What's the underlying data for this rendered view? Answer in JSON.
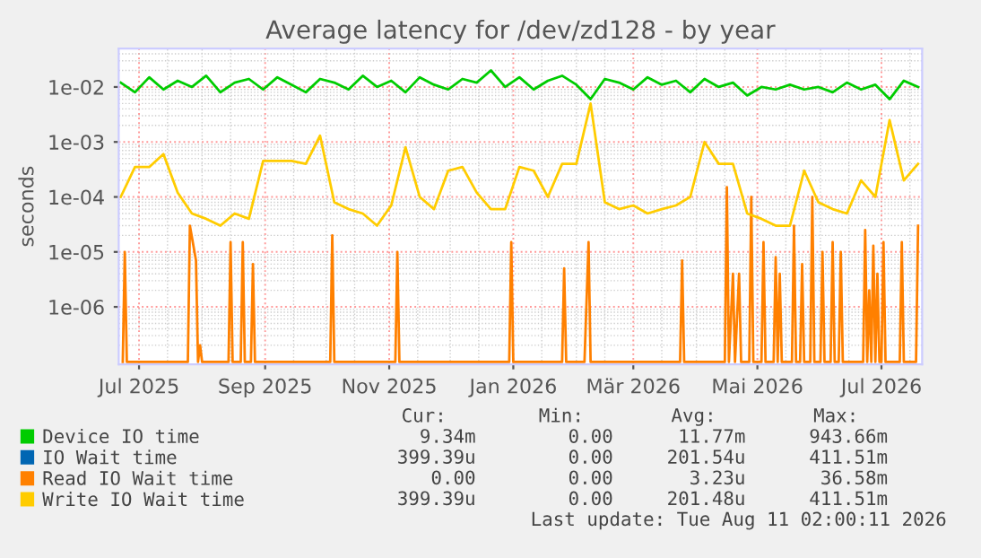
{
  "chart_data": {
    "type": "line",
    "title": "Average latency for /dev/zd128 - by year",
    "ylabel": "seconds",
    "log": "y",
    "grid": true,
    "legend": "bottom left",
    "line_style": "solid",
    "marker": "none",
    "xlim": [
      "2025-06-21",
      "2026-07-21"
    ],
    "xticks": [
      {
        "value": "2025-07-01",
        "label": "Jul 2025"
      },
      {
        "value": "2025-09-01",
        "label": "Sep 2025"
      },
      {
        "value": "2025-11-01",
        "label": "Nov 2025"
      },
      {
        "value": "2026-01-01",
        "label": "Jan 2026"
      },
      {
        "value": "2026-03-01",
        "label": "Mär 2026"
      },
      {
        "value": "2026-05-01",
        "label": "Mai 2026"
      },
      {
        "value": "2026-07-01",
        "label": "Jul 2026"
      }
    ],
    "ylim": [
      9e-08,
      0.05
    ],
    "yticks": [
      {
        "value": 1e-06,
        "label": "1e-06"
      },
      {
        "value": 1e-05,
        "label": "1e-05"
      },
      {
        "value": 0.0001,
        "label": "1e-04"
      },
      {
        "value": 0.001,
        "label": "1e-03"
      },
      {
        "value": 0.01,
        "label": "1e-02"
      }
    ],
    "x": [
      "2025-06-22",
      "2025-06-29",
      "2025-07-06",
      "2025-07-13",
      "2025-07-20",
      "2025-07-27",
      "2025-08-03",
      "2025-08-10",
      "2025-08-17",
      "2025-08-24",
      "2025-08-31",
      "2025-09-07",
      "2025-09-14",
      "2025-09-21",
      "2025-09-28",
      "2025-10-05",
      "2025-10-12",
      "2025-10-19",
      "2025-10-26",
      "2025-11-02",
      "2025-11-09",
      "2025-11-16",
      "2025-11-23",
      "2025-11-30",
      "2025-12-07",
      "2025-12-14",
      "2025-12-21",
      "2025-12-28",
      "2026-01-04",
      "2026-01-11",
      "2026-01-18",
      "2026-01-25",
      "2026-02-01",
      "2026-02-08",
      "2026-02-15",
      "2026-02-22",
      "2026-03-01",
      "2026-03-08",
      "2026-03-15",
      "2026-03-22",
      "2026-03-29",
      "2026-04-05",
      "2026-04-12",
      "2026-04-19",
      "2026-04-26",
      "2026-05-03",
      "2026-05-10",
      "2026-05-17",
      "2026-05-24",
      "2026-05-31",
      "2026-06-07",
      "2026-06-14",
      "2026-06-21",
      "2026-06-28",
      "2026-07-05",
      "2026-07-12",
      "2026-07-19"
    ],
    "series": [
      {
        "name": "Device IO time",
        "color": "#00cc00",
        "values": [
          0.012,
          0.008,
          0.015,
          0.009,
          0.013,
          0.01,
          0.016,
          0.008,
          0.012,
          0.014,
          0.009,
          0.015,
          0.011,
          0.008,
          0.014,
          0.012,
          0.009,
          0.016,
          0.01,
          0.013,
          0.008,
          0.015,
          0.011,
          0.009,
          0.014,
          0.012,
          0.02,
          0.01,
          0.015,
          0.009,
          0.013,
          0.016,
          0.011,
          0.006,
          0.014,
          0.012,
          0.009,
          0.015,
          0.011,
          0.013,
          0.008,
          0.014,
          0.01,
          0.012,
          0.007,
          0.01,
          0.009,
          0.011,
          0.009,
          0.01,
          0.008,
          0.012,
          0.009,
          0.011,
          0.006,
          0.013,
          0.01
        ]
      },
      {
        "name": "IO Wait time",
        "color": "#0066b3",
        "values": [
          null,
          null,
          null,
          null,
          null,
          null,
          null,
          null,
          null,
          null,
          null,
          null,
          null,
          null,
          null,
          null,
          null,
          null,
          null,
          null,
          null,
          null,
          null,
          null,
          null,
          null,
          null,
          null,
          null,
          null,
          null,
          null,
          null,
          null,
          null,
          null,
          null,
          null,
          null,
          null,
          null,
          null,
          null,
          null,
          null,
          null,
          null,
          null,
          null,
          null,
          null,
          null,
          null,
          null,
          null,
          null,
          null
        ]
      },
      {
        "name": "Read IO Wait time",
        "color": "#ff8000",
        "x": [
          "2025-06-23",
          "2025-06-24",
          "2025-06-25",
          "2025-07-25",
          "2025-07-26",
          "2025-07-29",
          "2025-07-30",
          "2025-07-31",
          "2025-08-01",
          "2025-08-14",
          "2025-08-15",
          "2025-08-16",
          "2025-08-20",
          "2025-08-21",
          "2025-08-22",
          "2025-08-25",
          "2025-08-26",
          "2025-08-27",
          "2025-10-03",
          "2025-10-04",
          "2025-10-05",
          "2025-11-04",
          "2025-11-05",
          "2025-11-06",
          "2025-12-30",
          "2025-12-31",
          "2026-01-01",
          "2026-01-25",
          "2026-01-26",
          "2026-01-27",
          "2026-02-05",
          "2026-02-07",
          "2026-02-08",
          "2026-03-24",
          "2026-03-25",
          "2026-03-26",
          "2026-04-15",
          "2026-04-16",
          "2026-04-17",
          "2026-04-19",
          "2026-04-20",
          "2026-04-22",
          "2026-04-23",
          "2026-04-27",
          "2026-04-28",
          "2026-04-29",
          "2026-05-03",
          "2026-05-04",
          "2026-05-05",
          "2026-05-09",
          "2026-05-10",
          "2026-05-11",
          "2026-05-12",
          "2026-05-13",
          "2026-05-18",
          "2026-05-19",
          "2026-05-20",
          "2026-05-22",
          "2026-05-23",
          "2026-05-24",
          "2026-05-27",
          "2026-05-28",
          "2026-05-29",
          "2026-06-01",
          "2026-06-02",
          "2026-06-03",
          "2026-06-06",
          "2026-06-07",
          "2026-06-08",
          "2026-06-10",
          "2026-06-11",
          "2026-06-12",
          "2026-06-22",
          "2026-06-23",
          "2026-06-24",
          "2026-06-25",
          "2026-06-26",
          "2026-06-27",
          "2026-06-28",
          "2026-06-29",
          "2026-06-30",
          "2026-07-01",
          "2026-07-02",
          "2026-07-03",
          "2026-07-10",
          "2026-07-11",
          "2026-07-12",
          "2026-07-18",
          "2026-07-19"
        ],
        "values": [
          1e-07,
          1e-05,
          1e-07,
          1e-07,
          3e-05,
          7e-06,
          1e-07,
          2e-07,
          1e-07,
          1e-07,
          1.5e-05,
          1e-07,
          1e-07,
          1.5e-05,
          1e-07,
          1e-07,
          6e-06,
          1e-07,
          1e-07,
          2e-05,
          1e-07,
          1e-07,
          1e-05,
          1e-07,
          1e-07,
          1.5e-05,
          1e-07,
          1e-07,
          5e-06,
          1e-07,
          1e-07,
          1.5e-05,
          1e-07,
          1e-07,
          7e-06,
          1e-07,
          1e-07,
          0.00015,
          1e-07,
          4e-06,
          1e-07,
          4e-06,
          1e-07,
          1e-07,
          0.0001,
          1e-07,
          1e-07,
          1.5e-05,
          1e-07,
          1e-07,
          8e-06,
          1e-07,
          4e-06,
          1e-07,
          1e-07,
          3e-05,
          1e-07,
          1e-07,
          6e-06,
          1e-07,
          1e-07,
          0.0001,
          1e-07,
          1e-07,
          1e-05,
          1e-07,
          1e-07,
          1.5e-05,
          1e-07,
          1e-07,
          1e-05,
          1e-07,
          1e-07,
          2.5e-05,
          1e-07,
          2e-06,
          1e-07,
          1.3e-05,
          1e-07,
          4e-06,
          1e-07,
          1e-07,
          1.5e-05,
          1e-07,
          1e-07,
          1.5e-05,
          1e-07,
          1e-07,
          3e-05
        ]
      },
      {
        "name": "Write IO Wait time",
        "color": "#ffcc00",
        "values": [
          0.0001,
          0.00035,
          0.00035,
          0.0006,
          0.00012,
          5e-05,
          4e-05,
          3e-05,
          5e-05,
          4e-05,
          0.00045,
          0.00045,
          0.00045,
          0.0004,
          0.0013,
          8e-05,
          6e-05,
          5e-05,
          3e-05,
          7e-05,
          0.0008,
          0.0001,
          6e-05,
          0.0003,
          0.00035,
          0.00012,
          6e-05,
          6e-05,
          0.00035,
          0.0003,
          0.0001,
          0.0004,
          0.0004,
          0.005,
          8e-05,
          6e-05,
          7e-05,
          5e-05,
          6e-05,
          7e-05,
          0.0001,
          0.001,
          0.0004,
          0.0004,
          5e-05,
          4e-05,
          3e-05,
          3e-05,
          0.0003,
          8e-05,
          6e-05,
          5e-05,
          0.0002,
          0.0001,
          0.0025,
          0.0002,
          0.0004
        ]
      }
    ],
    "annotations": [
      "Cur:",
      "Min:",
      "Avg:",
      "Max:",
      "9.34m",
      "0.00",
      "11.77m",
      "943.66m",
      "399.39u",
      "0.00",
      "201.54u",
      "411.51m",
      "0.00",
      "0.00",
      "3.23u",
      "36.58m",
      "399.39u",
      "0.00",
      "201.48u",
      "411.51m",
      "Last update: Tue Aug 11 02:00:11 2026"
    ]
  }
}
